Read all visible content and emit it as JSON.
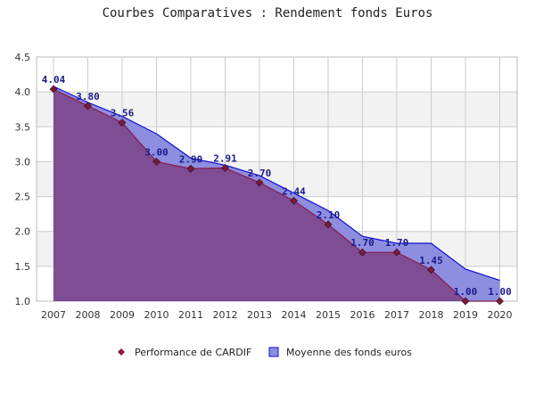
{
  "title": "Courbes Comparatives : Rendement fonds Euros",
  "colors": {
    "cardif_fill": "#7d4a8f",
    "cardif_line": "#8b1a4a",
    "cardif_marker": "#7a1a3a",
    "moyenne_fill": "#8e8ee0",
    "moyenne_line": "#1010d0",
    "band": "#f2f2f2",
    "grid": "#cccccc",
    "label": "#1a1a8c"
  },
  "legend": {
    "items": [
      {
        "label": "Performance de CARDIF",
        "symbol": "diamond"
      },
      {
        "label": "Moyenne des fonds euros",
        "symbol": "square"
      }
    ],
    "position": "bottom-center"
  },
  "chart_data": {
    "type": "area",
    "title": "Courbes Comparatives : Rendement fonds Euros",
    "xlabel": "",
    "ylabel": "",
    "categories": [
      "2007",
      "2008",
      "2009",
      "2010",
      "2011",
      "2012",
      "2013",
      "2014",
      "2015",
      "2016",
      "2017",
      "2018",
      "2019",
      "2020"
    ],
    "ylim": [
      1.0,
      4.5
    ],
    "yticks": [
      "1.0",
      "1.5",
      "2.0",
      "2.5",
      "3.0",
      "3.5",
      "4.0",
      "4.5"
    ],
    "grid": true,
    "series": [
      {
        "name": "Moyenne des fonds euros",
        "values": [
          4.08,
          3.85,
          3.65,
          3.4,
          3.05,
          2.95,
          2.8,
          2.55,
          2.3,
          1.93,
          1.83,
          1.83,
          1.46,
          1.3
        ]
      },
      {
        "name": "Performance de CARDIF",
        "values": [
          4.04,
          3.8,
          3.56,
          3.0,
          2.9,
          2.91,
          2.7,
          2.44,
          2.1,
          1.7,
          1.7,
          1.45,
          1.0,
          1.0
        ],
        "labels": [
          "4.04",
          "3.80",
          "3.56",
          "3.00",
          "2.90",
          "2.91",
          "2.70",
          "2.44",
          "2.10",
          "1.70",
          "1.70",
          "1.45",
          "1.00",
          "1.00"
        ]
      }
    ]
  }
}
